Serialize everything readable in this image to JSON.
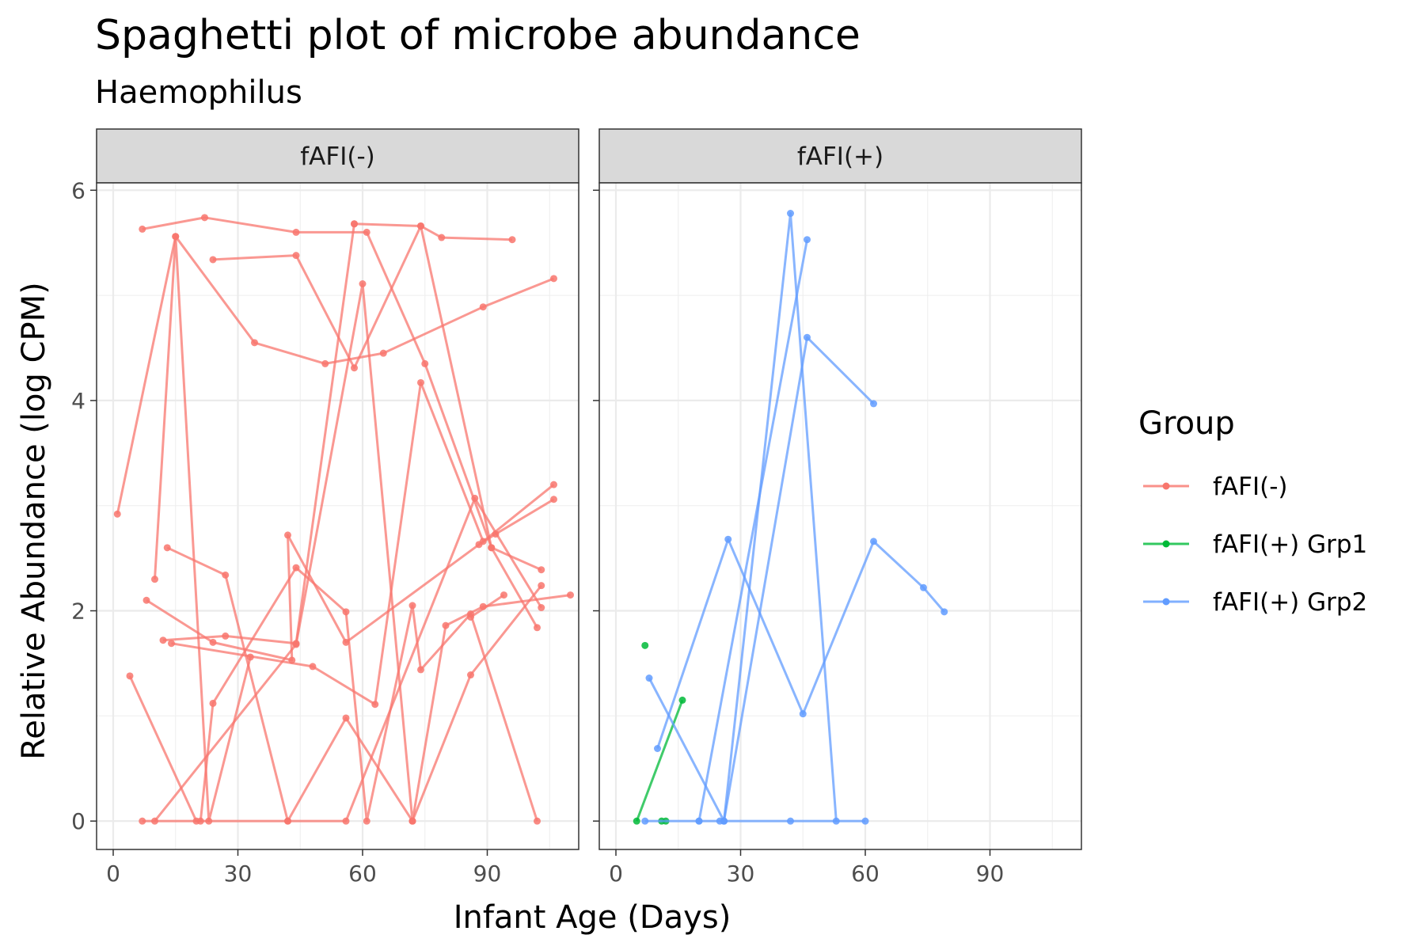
{
  "chart_data": {
    "type": "line",
    "title": "Spaghetti plot of microbe abundance",
    "subtitle": "Haemophilus",
    "xlabel": "Infant Age (Days)",
    "ylabel": "Relative Abundance (log CPM)",
    "xlim": [
      -4,
      112
    ],
    "ylim": [
      -0.27,
      6.07
    ],
    "xticks": [
      0,
      30,
      60,
      90
    ],
    "yticks": [
      0,
      2,
      4,
      6
    ],
    "grid": true,
    "legend": {
      "title": "Group",
      "position": "right",
      "entries": [
        {
          "label": "fAFI(-)",
          "color": "#F8766D"
        },
        {
          "label": "fAFI(+) Grp1",
          "color": "#00BA38"
        },
        {
          "label": "fAFI(+) Grp2",
          "color": "#619CFF"
        }
      ]
    },
    "panels": [
      {
        "label": "fAFI(-)",
        "series": [
          {
            "group": "fAFI(-)",
            "points": [
              [
                1,
                2.92
              ],
              [
                15,
                5.56
              ],
              [
                34,
                4.55
              ],
              [
                51,
                4.35
              ],
              [
                65,
                4.45
              ],
              [
                89,
                4.89
              ],
              [
                106,
                5.16
              ]
            ]
          },
          {
            "group": "fAFI(-)",
            "points": [
              [
                7,
                5.63
              ],
              [
                22,
                5.74
              ],
              [
                44,
                5.6
              ],
              [
                61,
                5.6
              ],
              [
                75,
                4.35
              ],
              [
                91,
                2.6
              ],
              [
                103,
                2.39
              ]
            ]
          },
          {
            "group": "fAFI(-)",
            "points": [
              [
                24,
                5.34
              ],
              [
                44,
                5.38
              ],
              [
                58,
                4.31
              ],
              [
                74,
                5.66
              ],
              [
                91,
                2.6
              ],
              [
                102,
                1.84
              ]
            ]
          },
          {
            "group": "fAFI(-)",
            "points": [
              [
                58,
                5.68
              ],
              [
                74,
                5.66
              ],
              [
                79,
                5.55
              ],
              [
                96,
                5.53
              ]
            ]
          },
          {
            "group": "fAFI(-)",
            "points": [
              [
                10,
                2.3
              ],
              [
                15,
                5.56
              ],
              [
                23,
                0
              ],
              [
                33,
                1.56
              ]
            ]
          },
          {
            "group": "fAFI(-)",
            "points": [
              [
                13,
                2.6
              ],
              [
                27,
                2.34
              ],
              [
                42,
                0
              ],
              [
                56,
                0
              ],
              [
                87,
                3.07
              ],
              [
                103,
                2.03
              ]
            ]
          },
          {
            "group": "fAFI(-)",
            "points": [
              [
                8,
                2.1
              ],
              [
                24,
                1.7
              ],
              [
                43,
                1.53
              ],
              [
                42,
                2.72
              ],
              [
                56,
                1.7
              ],
              [
                88,
                2.63
              ],
              [
                92,
                2.73
              ],
              [
                106,
                3.06
              ]
            ]
          },
          {
            "group": "fAFI(-)",
            "points": [
              [
                12,
                1.72
              ],
              [
                27,
                1.76
              ],
              [
                44,
                1.69
              ],
              [
                58,
                5.68
              ]
            ]
          },
          {
            "group": "fAFI(-)",
            "points": [
              [
                14,
                1.69
              ],
              [
                48,
                1.47
              ],
              [
                63,
                1.11
              ],
              [
                74,
                4.17
              ],
              [
                89,
                2.66
              ],
              [
                106,
                3.2
              ]
            ]
          },
          {
            "group": "fAFI(-)",
            "points": [
              [
                4,
                1.38
              ],
              [
                20,
                0
              ],
              [
                42,
                0
              ],
              [
                56,
                0.98
              ],
              [
                72,
                0
              ]
            ]
          },
          {
            "group": "fAFI(-)",
            "points": [
              [
                7,
                0
              ],
              [
                21,
                0
              ],
              [
                24,
                1.12
              ],
              [
                44,
                2.41
              ],
              [
                56,
                1.99
              ],
              [
                61,
                0.0
              ],
              [
                72,
                2.05
              ],
              [
                74,
                1.44
              ],
              [
                86,
                1.97
              ],
              [
                102,
                0
              ]
            ]
          },
          {
            "group": "fAFI(-)",
            "points": [
              [
                10,
                0
              ],
              [
                44,
                1.68
              ],
              [
                60,
                5.11
              ],
              [
                72,
                0
              ],
              [
                80,
                1.86
              ],
              [
                89,
                2.04
              ],
              [
                110,
                2.15
              ]
            ]
          },
          {
            "group": "fAFI(-)",
            "points": [
              [
                72,
                0
              ],
              [
                86,
                1.39
              ],
              [
                103,
                2.24
              ]
            ]
          },
          {
            "group": "fAFI(-)",
            "points": [
              [
                86,
                1.94
              ],
              [
                94,
                2.15
              ]
            ]
          }
        ]
      },
      {
        "label": "fAFI(+)",
        "series": [
          {
            "group": "fAFI(+) Grp1",
            "points": [
              [
                5,
                0
              ],
              [
                16,
                1.15
              ]
            ]
          },
          {
            "group": "fAFI(+) Grp1",
            "points": [
              [
                11,
                0
              ],
              [
                12,
                0
              ]
            ]
          },
          {
            "group": "fAFI(+) Grp1",
            "points": [
              [
                7,
                1.67
              ]
            ]
          },
          {
            "group": "fAFI(+) Grp2",
            "points": [
              [
                8,
                1.36
              ],
              [
                26,
                0
              ],
              [
                42,
                5.78
              ],
              [
                53,
                0
              ]
            ]
          },
          {
            "group": "fAFI(+) Grp2",
            "points": [
              [
                10,
                0.69
              ],
              [
                27,
                2.68
              ],
              [
                45,
                1.02
              ],
              [
                62,
                2.66
              ],
              [
                74,
                2.22
              ],
              [
                79,
                1.99
              ]
            ]
          },
          {
            "group": "fAFI(+) Grp2",
            "points": [
              [
                26,
                0
              ],
              [
                46,
                4.6
              ],
              [
                62,
                3.97
              ]
            ]
          },
          {
            "group": "fAFI(+) Grp2",
            "points": [
              [
                7,
                0
              ],
              [
                20,
                0
              ],
              [
                25,
                0
              ],
              [
                26,
                0
              ],
              [
                42,
                0
              ],
              [
                60,
                0
              ]
            ]
          },
          {
            "group": "fAFI(+) Grp2",
            "points": [
              [
                20,
                0
              ],
              [
                46,
                5.53
              ]
            ]
          }
        ]
      }
    ]
  }
}
